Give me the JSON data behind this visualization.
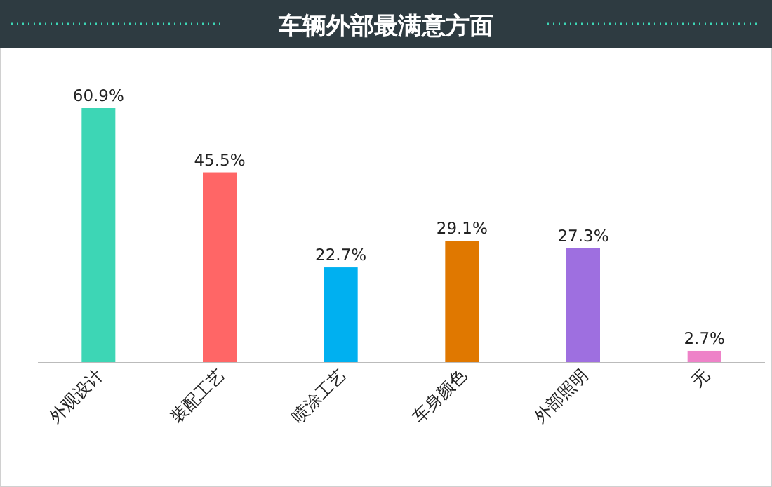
{
  "chart_data": {
    "type": "bar",
    "title": "车辆外部最满意方面",
    "categories": [
      "外观设计",
      "装配工艺",
      "喷涂工艺",
      "车身颜色",
      "外部照明",
      "无"
    ],
    "values": [
      60.9,
      45.5,
      22.7,
      29.1,
      27.3,
      2.7
    ],
    "colors": [
      "#3dd6b5",
      "#ff6666",
      "#00b0f0",
      "#e07800",
      "#9e6fe0",
      "#ee82c8"
    ],
    "value_labels": [
      "60.9%",
      "45.5%",
      "22.7%",
      "29.1%",
      "27.3%",
      "2.7%"
    ]
  }
}
